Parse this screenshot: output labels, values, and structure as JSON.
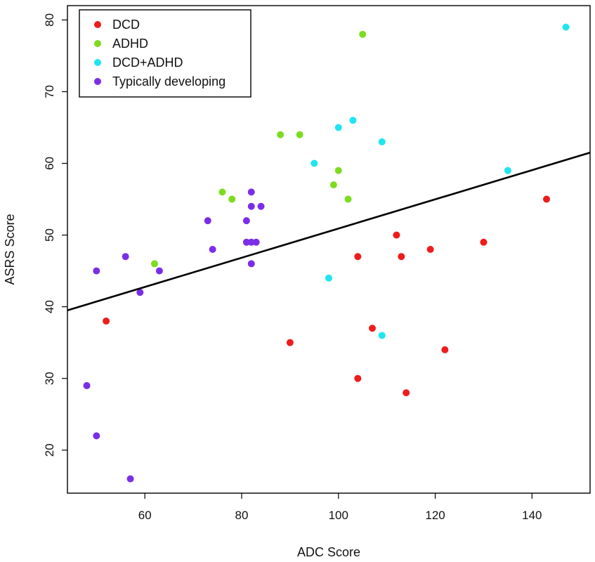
{
  "chart_data": {
    "type": "scatter",
    "title": "",
    "xlabel": "ADC Score",
    "ylabel": "ASRS Score",
    "xlim": [
      44,
      152
    ],
    "ylim": [
      14,
      82
    ],
    "xticks": [
      60,
      80,
      100,
      120,
      140
    ],
    "yticks": [
      20,
      30,
      40,
      50,
      60,
      70,
      80
    ],
    "grid": false,
    "legend_position": "top-left",
    "series": [
      {
        "name": "DCD",
        "color": "#ee1c1c",
        "points": [
          [
            52,
            38
          ],
          [
            90,
            35
          ],
          [
            104,
            30
          ],
          [
            104,
            47
          ],
          [
            107,
            37
          ],
          [
            112,
            50
          ],
          [
            113,
            47
          ],
          [
            114,
            28
          ],
          [
            119,
            48
          ],
          [
            122,
            34
          ],
          [
            130,
            49
          ],
          [
            143,
            55
          ]
        ]
      },
      {
        "name": "ADHD",
        "color": "#7ddc1f",
        "points": [
          [
            62,
            46
          ],
          [
            76,
            56
          ],
          [
            78,
            55
          ],
          [
            88,
            64
          ],
          [
            92,
            64
          ],
          [
            99,
            57
          ],
          [
            100,
            59
          ],
          [
            102,
            55
          ],
          [
            105,
            78
          ]
        ]
      },
      {
        "name": "DCD+ADHD",
        "color": "#1ee6f0",
        "points": [
          [
            95,
            60
          ],
          [
            98,
            44
          ],
          [
            100,
            65
          ],
          [
            103,
            66
          ],
          [
            109,
            63
          ],
          [
            109,
            36
          ],
          [
            135,
            59
          ],
          [
            147,
            79
          ]
        ]
      },
      {
        "name": "Typically developing",
        "color": "#7a2ee6",
        "points": [
          [
            48,
            29
          ],
          [
            50,
            45
          ],
          [
            50,
            22
          ],
          [
            56,
            47
          ],
          [
            57,
            16
          ],
          [
            59,
            42
          ],
          [
            63,
            45
          ],
          [
            73,
            52
          ],
          [
            74,
            48
          ],
          [
            81,
            52
          ],
          [
            81,
            49
          ],
          [
            82,
            56
          ],
          [
            82,
            54
          ],
          [
            82,
            49
          ],
          [
            82,
            46
          ],
          [
            83,
            49
          ],
          [
            84,
            54
          ]
        ]
      }
    ],
    "regression_line": {
      "color": "#000000",
      "points": [
        [
          44,
          39.5
        ],
        [
          152,
          61.5
        ]
      ]
    }
  }
}
